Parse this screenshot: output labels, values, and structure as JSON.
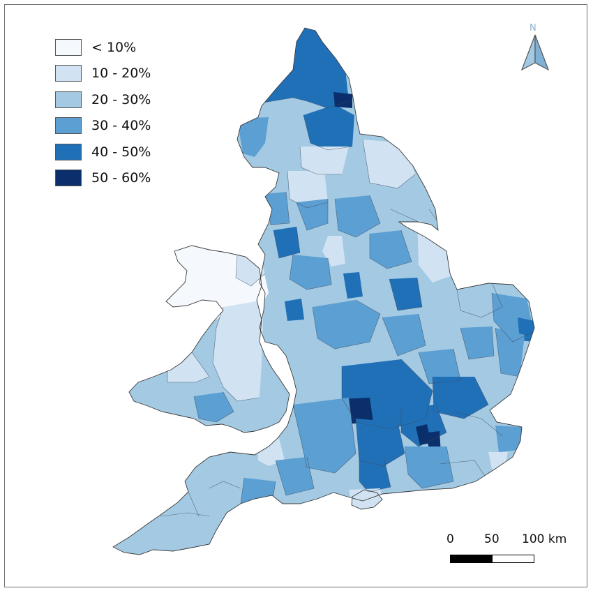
{
  "map": {
    "legend": [
      {
        "label": "< 10%",
        "color": "#f5f9fe"
      },
      {
        "label": "10 - 20%",
        "color": "#d1e3f3"
      },
      {
        "label": "20 - 30%",
        "color": "#a3c9e3"
      },
      {
        "label": "30 - 40%",
        "color": "#5c9fd2"
      },
      {
        "label": "40 - 50%",
        "color": "#2070b8"
      },
      {
        "label": "50 - 60%",
        "color": "#0a2f6b"
      }
    ],
    "north_label": "N",
    "scale": {
      "ticks": [
        "0",
        "50",
        "100 km"
      ]
    }
  }
}
